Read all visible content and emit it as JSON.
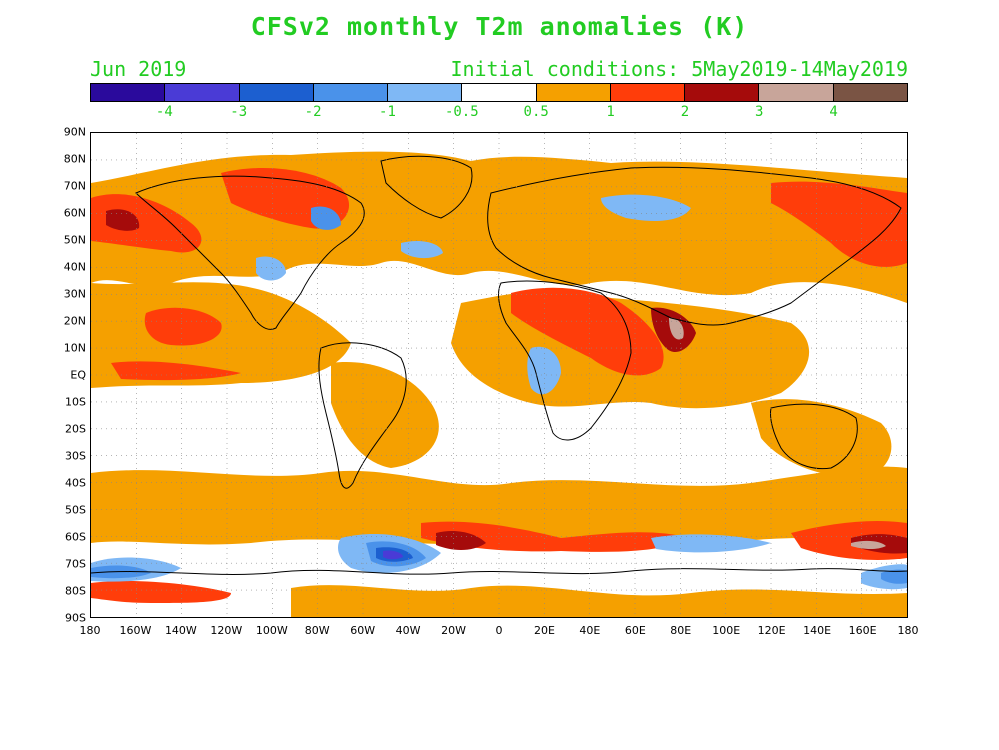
{
  "title": "CFSv2 monthly T2m anomalies (K)",
  "month": "Jun 2019",
  "initial_conditions": "Initial conditions: 5May2019-14May2019",
  "colorbar": {
    "colors": [
      "#2a0a9c",
      "#4a3bd6",
      "#1c5fd0",
      "#4a92ea",
      "#7fb8f5",
      "#ffffff",
      "#f5a000",
      "#ff3d0a",
      "#a50b0b",
      "#c8a59a",
      "#7a5444"
    ],
    "labels": [
      "-4",
      "-3",
      "-2",
      "-1",
      "-0.5",
      "0.5",
      "1",
      "2",
      "3",
      "4"
    ]
  },
  "map": {
    "lat_labels": [
      "90N",
      "80N",
      "70N",
      "60N",
      "50N",
      "40N",
      "30N",
      "20N",
      "10N",
      "EQ",
      "10S",
      "20S",
      "30S",
      "40S",
      "50S",
      "60S",
      "70S",
      "80S",
      "90S"
    ],
    "lon_labels": [
      "180",
      "160W",
      "140W",
      "120W",
      "100W",
      "80W",
      "60W",
      "40W",
      "20W",
      "0",
      "20E",
      "40E",
      "60E",
      "80E",
      "100E",
      "120E",
      "140E",
      "160E",
      "180"
    ],
    "anomaly_levels": [
      "#f5a000",
      "#ff3d0a",
      "#a50b0b",
      "#c8a59a",
      "#7fb8f5",
      "#4a92ea",
      "#1c5fd0",
      "#4a3bd6"
    ]
  }
}
